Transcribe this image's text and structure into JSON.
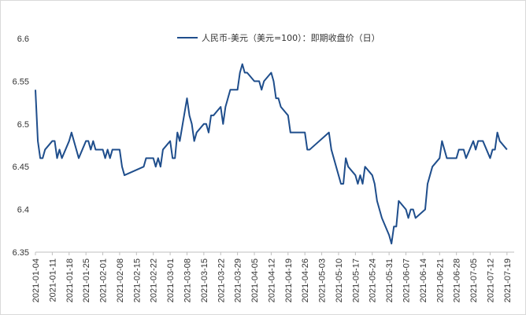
{
  "chart_data": {
    "type": "line",
    "title": "",
    "xlabel": "",
    "ylabel": "",
    "ylim": [
      6.35,
      6.6
    ],
    "yticks": [
      6.35,
      6.4,
      6.45,
      6.5,
      6.55,
      6.6
    ],
    "grid": false,
    "legend_position": "top-center",
    "x_tick_labels": [
      "2021-01-04",
      "2021-01-11",
      "2021-01-18",
      "2021-01-25",
      "2021-02-01",
      "2021-02-08",
      "2021-02-15",
      "2021-02-22",
      "2021-03-01",
      "2021-03-08",
      "2021-03-15",
      "2021-03-22",
      "2021-03-29",
      "2021-04-05",
      "2021-04-12",
      "2021-04-19",
      "2021-04-26",
      "2021-05-03",
      "2021-05-10",
      "2021-05-17",
      "2021-05-24",
      "2021-05-31",
      "2021-06-07",
      "2021-06-14",
      "2021-06-21",
      "2021-06-28",
      "2021-07-05",
      "2021-07-12",
      "2021-07-19"
    ],
    "series": [
      {
        "name": "人民币-美元（美元=100）：即期收盘价（日）",
        "color": "#1f4e8c",
        "points": [
          [
            "2021-01-04",
            6.54
          ],
          [
            "2021-01-05",
            6.48
          ],
          [
            "2021-01-06",
            6.46
          ],
          [
            "2021-01-07",
            6.46
          ],
          [
            "2021-01-08",
            6.47
          ],
          [
            "2021-01-11",
            6.48
          ],
          [
            "2021-01-12",
            6.48
          ],
          [
            "2021-01-13",
            6.46
          ],
          [
            "2021-01-14",
            6.47
          ],
          [
            "2021-01-15",
            6.46
          ],
          [
            "2021-01-18",
            6.48
          ],
          [
            "2021-01-19",
            6.49
          ],
          [
            "2021-01-20",
            6.48
          ],
          [
            "2021-01-21",
            6.47
          ],
          [
            "2021-01-22",
            6.46
          ],
          [
            "2021-01-25",
            6.48
          ],
          [
            "2021-01-26",
            6.48
          ],
          [
            "2021-01-27",
            6.47
          ],
          [
            "2021-01-28",
            6.48
          ],
          [
            "2021-01-29",
            6.47
          ],
          [
            "2021-02-01",
            6.47
          ],
          [
            "2021-02-02",
            6.46
          ],
          [
            "2021-02-03",
            6.47
          ],
          [
            "2021-02-04",
            6.46
          ],
          [
            "2021-02-05",
            6.47
          ],
          [
            "2021-02-08",
            6.47
          ],
          [
            "2021-02-09",
            6.45
          ],
          [
            "2021-02-10",
            6.44
          ],
          [
            "2021-02-18",
            6.45
          ],
          [
            "2021-02-19",
            6.46
          ],
          [
            "2021-02-22",
            6.46
          ],
          [
            "2021-02-23",
            6.45
          ],
          [
            "2021-02-24",
            6.46
          ],
          [
            "2021-02-25",
            6.45
          ],
          [
            "2021-02-26",
            6.47
          ],
          [
            "2021-03-01",
            6.48
          ],
          [
            "2021-03-02",
            6.46
          ],
          [
            "2021-03-03",
            6.46
          ],
          [
            "2021-03-04",
            6.49
          ],
          [
            "2021-03-05",
            6.48
          ],
          [
            "2021-03-08",
            6.53
          ],
          [
            "2021-03-09",
            6.51
          ],
          [
            "2021-03-10",
            6.5
          ],
          [
            "2021-03-11",
            6.48
          ],
          [
            "2021-03-12",
            6.49
          ],
          [
            "2021-03-15",
            6.5
          ],
          [
            "2021-03-16",
            6.5
          ],
          [
            "2021-03-17",
            6.49
          ],
          [
            "2021-03-18",
            6.51
          ],
          [
            "2021-03-19",
            6.51
          ],
          [
            "2021-03-22",
            6.52
          ],
          [
            "2021-03-23",
            6.5
          ],
          [
            "2021-03-24",
            6.52
          ],
          [
            "2021-03-25",
            6.53
          ],
          [
            "2021-03-26",
            6.54
          ],
          [
            "2021-03-29",
            6.54
          ],
          [
            "2021-03-30",
            6.56
          ],
          [
            "2021-03-31",
            6.57
          ],
          [
            "2021-04-01",
            6.56
          ],
          [
            "2021-04-02",
            6.56
          ],
          [
            "2021-04-05",
            6.55
          ],
          [
            "2021-04-06",
            6.55
          ],
          [
            "2021-04-07",
            6.55
          ],
          [
            "2021-04-08",
            6.54
          ],
          [
            "2021-04-09",
            6.55
          ],
          [
            "2021-04-12",
            6.56
          ],
          [
            "2021-04-13",
            6.55
          ],
          [
            "2021-04-14",
            6.53
          ],
          [
            "2021-04-15",
            6.53
          ],
          [
            "2021-04-16",
            6.52
          ],
          [
            "2021-04-19",
            6.51
          ],
          [
            "2021-04-20",
            6.49
          ],
          [
            "2021-04-21",
            6.49
          ],
          [
            "2021-04-26",
            6.49
          ],
          [
            "2021-04-27",
            6.47
          ],
          [
            "2021-04-28",
            6.47
          ],
          [
            "2021-05-06",
            6.49
          ],
          [
            "2021-05-07",
            6.47
          ],
          [
            "2021-05-10",
            6.44
          ],
          [
            "2021-05-11",
            6.43
          ],
          [
            "2021-05-12",
            6.43
          ],
          [
            "2021-05-13",
            6.46
          ],
          [
            "2021-05-14",
            6.45
          ],
          [
            "2021-05-17",
            6.44
          ],
          [
            "2021-05-18",
            6.43
          ],
          [
            "2021-05-19",
            6.44
          ],
          [
            "2021-05-20",
            6.43
          ],
          [
            "2021-05-21",
            6.45
          ],
          [
            "2021-05-24",
            6.44
          ],
          [
            "2021-05-25",
            6.43
          ],
          [
            "2021-05-26",
            6.41
          ],
          [
            "2021-05-27",
            6.4
          ],
          [
            "2021-05-28",
            6.39
          ],
          [
            "2021-05-31",
            6.37
          ],
          [
            "2021-06-01",
            6.36
          ],
          [
            "2021-06-02",
            6.38
          ],
          [
            "2021-06-03",
            6.38
          ],
          [
            "2021-06-04",
            6.41
          ],
          [
            "2021-06-07",
            6.4
          ],
          [
            "2021-06-08",
            6.39
          ],
          [
            "2021-06-09",
            6.4
          ],
          [
            "2021-06-10",
            6.4
          ],
          [
            "2021-06-11",
            6.39
          ],
          [
            "2021-06-15",
            6.4
          ],
          [
            "2021-06-16",
            6.43
          ],
          [
            "2021-06-17",
            6.44
          ],
          [
            "2021-06-18",
            6.45
          ],
          [
            "2021-06-21",
            6.46
          ],
          [
            "2021-06-22",
            6.48
          ],
          [
            "2021-06-23",
            6.47
          ],
          [
            "2021-06-24",
            6.46
          ],
          [
            "2021-06-25",
            6.46
          ],
          [
            "2021-06-28",
            6.46
          ],
          [
            "2021-06-29",
            6.47
          ],
          [
            "2021-06-30",
            6.47
          ],
          [
            "2021-07-01",
            6.47
          ],
          [
            "2021-07-02",
            6.46
          ],
          [
            "2021-07-05",
            6.48
          ],
          [
            "2021-07-06",
            6.47
          ],
          [
            "2021-07-07",
            6.48
          ],
          [
            "2021-07-08",
            6.48
          ],
          [
            "2021-07-09",
            6.48
          ],
          [
            "2021-07-12",
            6.46
          ],
          [
            "2021-07-13",
            6.47
          ],
          [
            "2021-07-14",
            6.47
          ],
          [
            "2021-07-15",
            6.49
          ],
          [
            "2021-07-16",
            6.48
          ],
          [
            "2021-07-19",
            6.47
          ]
        ]
      }
    ]
  }
}
